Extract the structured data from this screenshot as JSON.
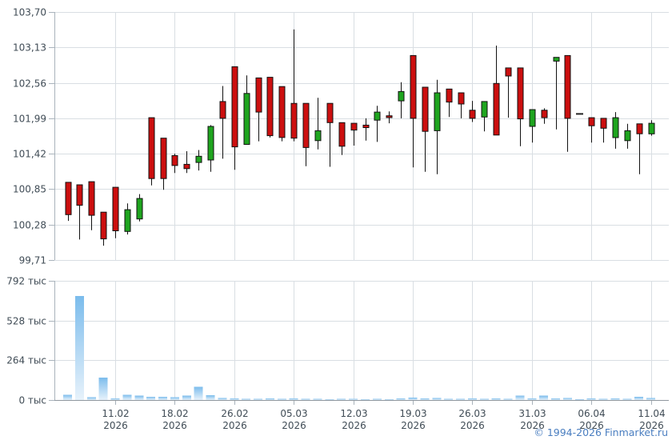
{
  "footer": {
    "copyright": "© 1994-2026 Finmarket.ru"
  },
  "colors": {
    "up": "#1fa51f",
    "down": "#cc0f0f",
    "candle_border": "#111111",
    "wick": "#111111",
    "flat_dash": "#222222",
    "grid": "#d9dee3",
    "axis": "#a9b3bb",
    "baseline": "#8f979e",
    "label": "#404c56",
    "volume_bar_top": "#7bbcec",
    "volume_bar_bottom": "#e7f2fb",
    "footer_link": "#4a7ec0"
  },
  "chart_data": {
    "type": "candlestick",
    "legend": "none",
    "grid": "on",
    "price_axis": {
      "side": "left",
      "max": 103.7,
      "min": 99.71,
      "ticks": [
        "103,70",
        "103,13",
        "102,56",
        "101,99",
        "101,42",
        "100,85",
        "100,28",
        "99,71"
      ],
      "values": [
        103.7,
        103.13,
        102.56,
        101.99,
        101.42,
        100.85,
        100.28,
        99.71
      ]
    },
    "volume_axis": {
      "side": "left",
      "unit": "тыс",
      "max": 792,
      "ticks": [
        "792 тыс",
        "528 тыс",
        "264 тыс",
        "0 тыс"
      ],
      "values": [
        792,
        528,
        264,
        0
      ]
    },
    "x_axis": {
      "ticks": [
        {
          "date": "11.02",
          "year": "2026",
          "candle_index": 4
        },
        {
          "date": "18.02",
          "year": "2026",
          "candle_index": 9
        },
        {
          "date": "26.02",
          "year": "2026",
          "candle_index": 14
        },
        {
          "date": "05.03",
          "year": "2026",
          "candle_index": 19
        },
        {
          "date": "12.03",
          "year": "2026",
          "candle_index": 24
        },
        {
          "date": "19.03",
          "year": "2026",
          "candle_index": 29
        },
        {
          "date": "26.03",
          "year": "2026",
          "candle_index": 34
        },
        {
          "date": "31.03",
          "year": "2026",
          "candle_index": 39
        },
        {
          "date": "06.04",
          "year": "2026",
          "candle_index": 44
        },
        {
          "date": "11.04",
          "year": "2026",
          "candle_index": 49
        }
      ]
    },
    "candles": [
      {
        "o": 100.96,
        "h": 100.96,
        "l": 100.34,
        "c": 100.44,
        "v": 35
      },
      {
        "o": 100.92,
        "h": 100.92,
        "l": 100.04,
        "c": 100.59,
        "v": 690
      },
      {
        "o": 100.97,
        "h": 100.97,
        "l": 100.19,
        "c": 100.43,
        "v": 18
      },
      {
        "o": 100.48,
        "h": 100.48,
        "l": 99.94,
        "c": 100.05,
        "v": 150
      },
      {
        "o": 100.88,
        "h": 100.88,
        "l": 100.06,
        "c": 100.18,
        "v": 10
      },
      {
        "o": 100.17,
        "h": 100.62,
        "l": 100.12,
        "c": 100.52,
        "v": 35
      },
      {
        "o": 100.37,
        "h": 100.77,
        "l": 100.33,
        "c": 100.7,
        "v": 28
      },
      {
        "o": 102.0,
        "h": 102.0,
        "l": 100.91,
        "c": 101.02,
        "v": 22
      },
      {
        "o": 101.67,
        "h": 101.67,
        "l": 100.84,
        "c": 101.02,
        "v": 22
      },
      {
        "o": 101.39,
        "h": 101.42,
        "l": 101.11,
        "c": 101.23,
        "v": 18
      },
      {
        "o": 101.25,
        "h": 101.46,
        "l": 101.11,
        "c": 101.18,
        "v": 28
      },
      {
        "o": 101.28,
        "h": 101.48,
        "l": 101.15,
        "c": 101.38,
        "v": 88
      },
      {
        "o": 101.32,
        "h": 101.88,
        "l": 101.13,
        "c": 101.86,
        "v": 32
      },
      {
        "o": 102.26,
        "h": 102.51,
        "l": 101.34,
        "c": 101.99,
        "v": 12
      },
      {
        "o": 102.82,
        "h": 102.82,
        "l": 101.16,
        "c": 101.53,
        "v": 10
      },
      {
        "o": 101.57,
        "h": 102.68,
        "l": 101.57,
        "c": 102.39,
        "v": 8
      },
      {
        "o": 102.64,
        "h": 102.64,
        "l": 101.62,
        "c": 102.09,
        "v": 8
      },
      {
        "o": 102.65,
        "h": 102.65,
        "l": 101.68,
        "c": 101.71,
        "v": 10
      },
      {
        "o": 102.5,
        "h": 102.5,
        "l": 101.62,
        "c": 101.68,
        "v": 8
      },
      {
        "o": 102.23,
        "h": 103.42,
        "l": 101.62,
        "c": 101.67,
        "v": 10
      },
      {
        "o": 102.23,
        "h": 102.23,
        "l": 101.22,
        "c": 101.52,
        "v": 8
      },
      {
        "o": 101.63,
        "h": 102.32,
        "l": 101.49,
        "c": 101.79,
        "v": 8
      },
      {
        "o": 102.23,
        "h": 102.23,
        "l": 101.21,
        "c": 101.92,
        "v": 6
      },
      {
        "o": 101.92,
        "h": 101.92,
        "l": 101.4,
        "c": 101.54,
        "v": 8
      },
      {
        "o": 101.91,
        "h": 101.91,
        "l": 101.55,
        "c": 101.8,
        "v": 8
      },
      {
        "o": 101.88,
        "h": 101.99,
        "l": 101.63,
        "c": 101.84,
        "v": 6
      },
      {
        "o": 101.96,
        "h": 102.19,
        "l": 101.61,
        "c": 102.09,
        "v": 8
      },
      {
        "o": 102.03,
        "h": 102.1,
        "l": 101.91,
        "c": 102.0,
        "v": 6
      },
      {
        "o": 102.27,
        "h": 102.57,
        "l": 101.99,
        "c": 102.42,
        "v": 10
      },
      {
        "o": 103.0,
        "h": 103.0,
        "l": 101.2,
        "c": 101.99,
        "v": 15
      },
      {
        "o": 102.49,
        "h": 102.49,
        "l": 101.13,
        "c": 101.78,
        "v": 10
      },
      {
        "o": 101.79,
        "h": 102.61,
        "l": 101.09,
        "c": 102.4,
        "v": 12
      },
      {
        "o": 102.46,
        "h": 102.46,
        "l": 102.01,
        "c": 102.25,
        "v": 8
      },
      {
        "o": 102.4,
        "h": 102.4,
        "l": 101.99,
        "c": 102.22,
        "v": 8
      },
      {
        "o": 102.12,
        "h": 102.27,
        "l": 101.93,
        "c": 101.99,
        "v": 10
      },
      {
        "o": 102.01,
        "h": 102.26,
        "l": 101.78,
        "c": 102.26,
        "v": 8
      },
      {
        "o": 102.55,
        "h": 103.16,
        "l": 101.72,
        "c": 101.72,
        "v": 10
      },
      {
        "o": 102.8,
        "h": 102.8,
        "l": 102.0,
        "c": 102.67,
        "v": 8
      },
      {
        "o": 102.8,
        "h": 102.8,
        "l": 101.54,
        "c": 101.98,
        "v": 30
      },
      {
        "o": 101.86,
        "h": 102.13,
        "l": 101.6,
        "c": 102.13,
        "v": 10
      },
      {
        "o": 102.12,
        "h": 102.15,
        "l": 101.9,
        "c": 102.0,
        "v": 28
      },
      {
        "o": 102.91,
        "h": 102.97,
        "l": 101.81,
        "c": 102.97,
        "v": 10
      },
      {
        "o": 103.0,
        "h": 103.0,
        "l": 101.45,
        "c": 101.99,
        "v": 12
      },
      {
        "o": 102.06,
        "h": 102.06,
        "l": 102.06,
        "c": 102.06,
        "v": 5
      },
      {
        "o": 102.0,
        "h": 102.0,
        "l": 101.6,
        "c": 101.87,
        "v": 10
      },
      {
        "o": 101.99,
        "h": 101.99,
        "l": 101.6,
        "c": 101.83,
        "v": 8
      },
      {
        "o": 101.68,
        "h": 102.09,
        "l": 101.5,
        "c": 102.0,
        "v": 10
      },
      {
        "o": 101.63,
        "h": 101.9,
        "l": 101.5,
        "c": 101.79,
        "v": 8
      },
      {
        "o": 101.9,
        "h": 101.9,
        "l": 101.09,
        "c": 101.74,
        "v": 20
      },
      {
        "o": 101.74,
        "h": 101.96,
        "l": 101.71,
        "c": 101.91,
        "v": 12
      }
    ]
  }
}
